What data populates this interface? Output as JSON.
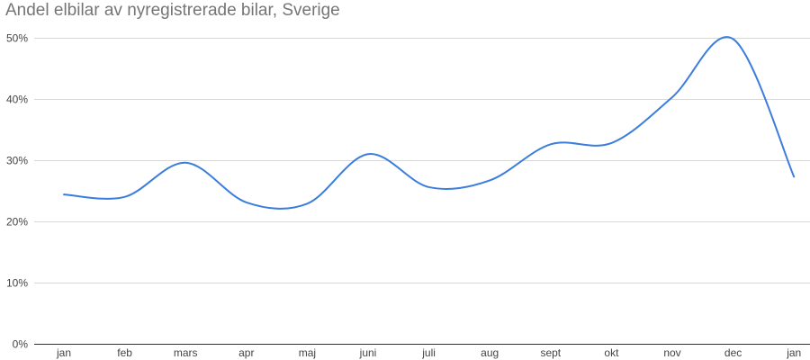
{
  "chart_data": {
    "type": "line",
    "title": "Andel elbilar av nyregistrerade bilar, Sverige",
    "xlabel": "",
    "ylabel": "",
    "categories": [
      "jan",
      "feb",
      "mars",
      "apr",
      "maj",
      "juni",
      "juli",
      "aug",
      "sept",
      "okt",
      "nov",
      "dec",
      "jan"
    ],
    "series": [
      {
        "values": [
          24.4,
          24.0,
          29.6,
          23.1,
          22.9,
          31.0,
          25.6,
          26.7,
          32.6,
          32.8,
          40.3,
          49.8,
          27.3
        ],
        "color": "#3b7ddd"
      }
    ],
    "ylim": [
      0,
      50
    ],
    "yticks": [
      {
        "value": 0,
        "label": "0%"
      },
      {
        "value": 10,
        "label": "10%"
      },
      {
        "value": 20,
        "label": "20%"
      },
      {
        "value": 30,
        "label": "30%"
      },
      {
        "value": 40,
        "label": "40%"
      },
      {
        "value": 50,
        "label": "50%"
      }
    ],
    "grid": true,
    "legend": "none",
    "smooth": true
  }
}
